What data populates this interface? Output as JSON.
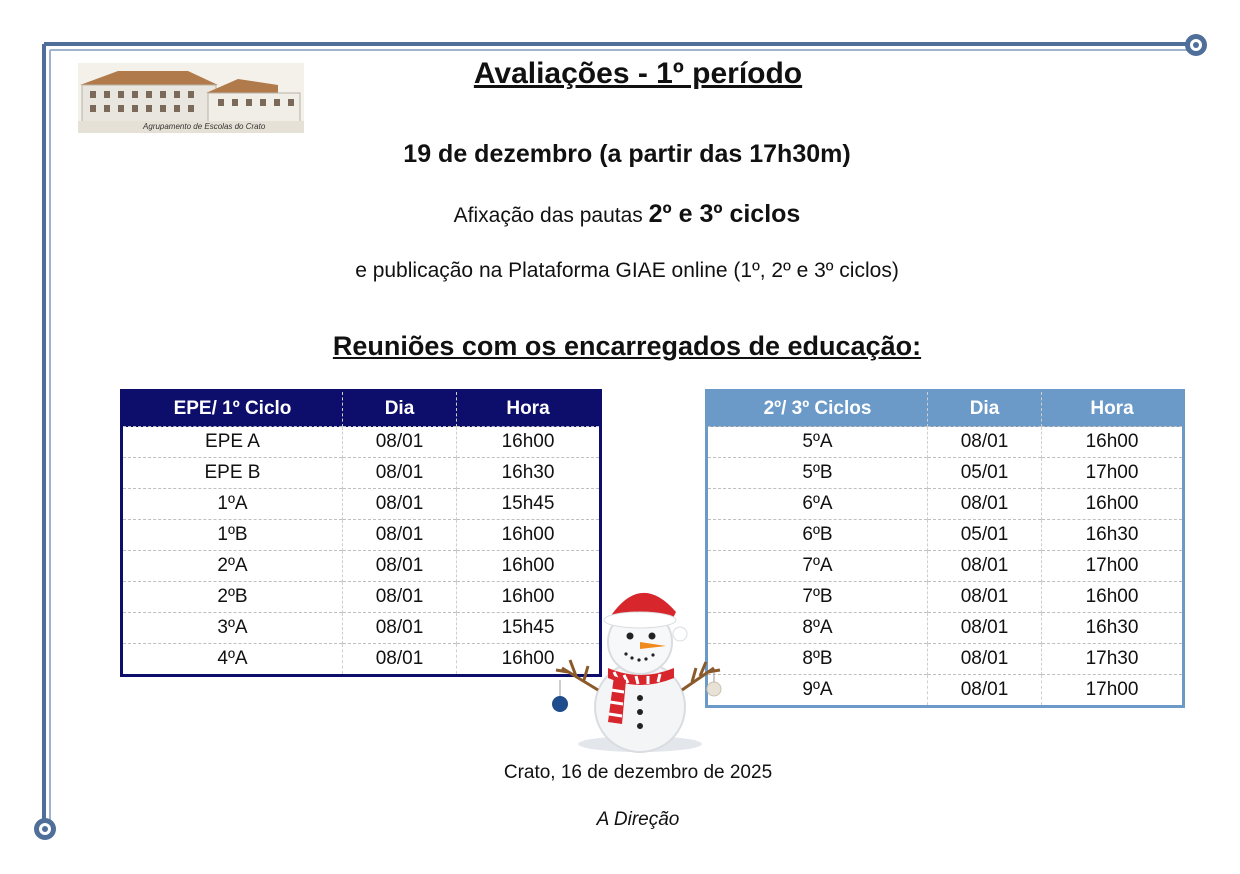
{
  "logo": {
    "caption": "Agrupamento de Escolas do Crato"
  },
  "title": "Avaliações  - 1º período",
  "date_line": "19 de dezembro (a partir das 17h30m)",
  "afixacao": {
    "prefix": "Afixação das pautas ",
    "highlight": "2º e 3º ciclos"
  },
  "publicacao": "e publicação na Plataforma GIAE online (1º, 2º e 3º ciclos)",
  "meetings_title": "Reuniões  com os encarregados de educação:",
  "table_left": {
    "headers": [
      "EPE/ 1º Ciclo",
      "Dia",
      "Hora"
    ],
    "rows": [
      [
        "EPE A",
        "08/01",
        "16h00"
      ],
      [
        "EPE B",
        "08/01",
        "16h30"
      ],
      [
        "1ºA",
        "08/01",
        "15h45"
      ],
      [
        "1ºB",
        "08/01",
        "16h00"
      ],
      [
        "2ºA",
        "08/01",
        "16h00"
      ],
      [
        "2ºB",
        "08/01",
        "16h00"
      ],
      [
        "3ºA",
        "08/01",
        "15h45"
      ],
      [
        "4ºA",
        "08/01",
        "16h00"
      ]
    ]
  },
  "table_right": {
    "headers": [
      "2º/ 3º Ciclos",
      "Dia",
      "Hora"
    ],
    "rows": [
      [
        "5ºA",
        "08/01",
        "16h00"
      ],
      [
        "5ºB",
        "05/01",
        "17h00"
      ],
      [
        "6ºA",
        "08/01",
        "16h00"
      ],
      [
        "6ºB",
        "05/01",
        "16h30"
      ],
      [
        "7ºA",
        "08/01",
        "17h00"
      ],
      [
        "7ºB",
        "08/01",
        "16h00"
      ],
      [
        "8ºA",
        "08/01",
        "16h30"
      ],
      [
        "8ºB",
        "08/01",
        "17h30"
      ],
      [
        "9ºA",
        "08/01",
        "17h00"
      ]
    ]
  },
  "place_date": "Crato, 16 de dezembro de 2025",
  "signature": "A Direção",
  "colors": {
    "frame": "#4f6f9a",
    "table_left_header": "#0d0d6b",
    "table_right_header": "#6b9ac8"
  }
}
